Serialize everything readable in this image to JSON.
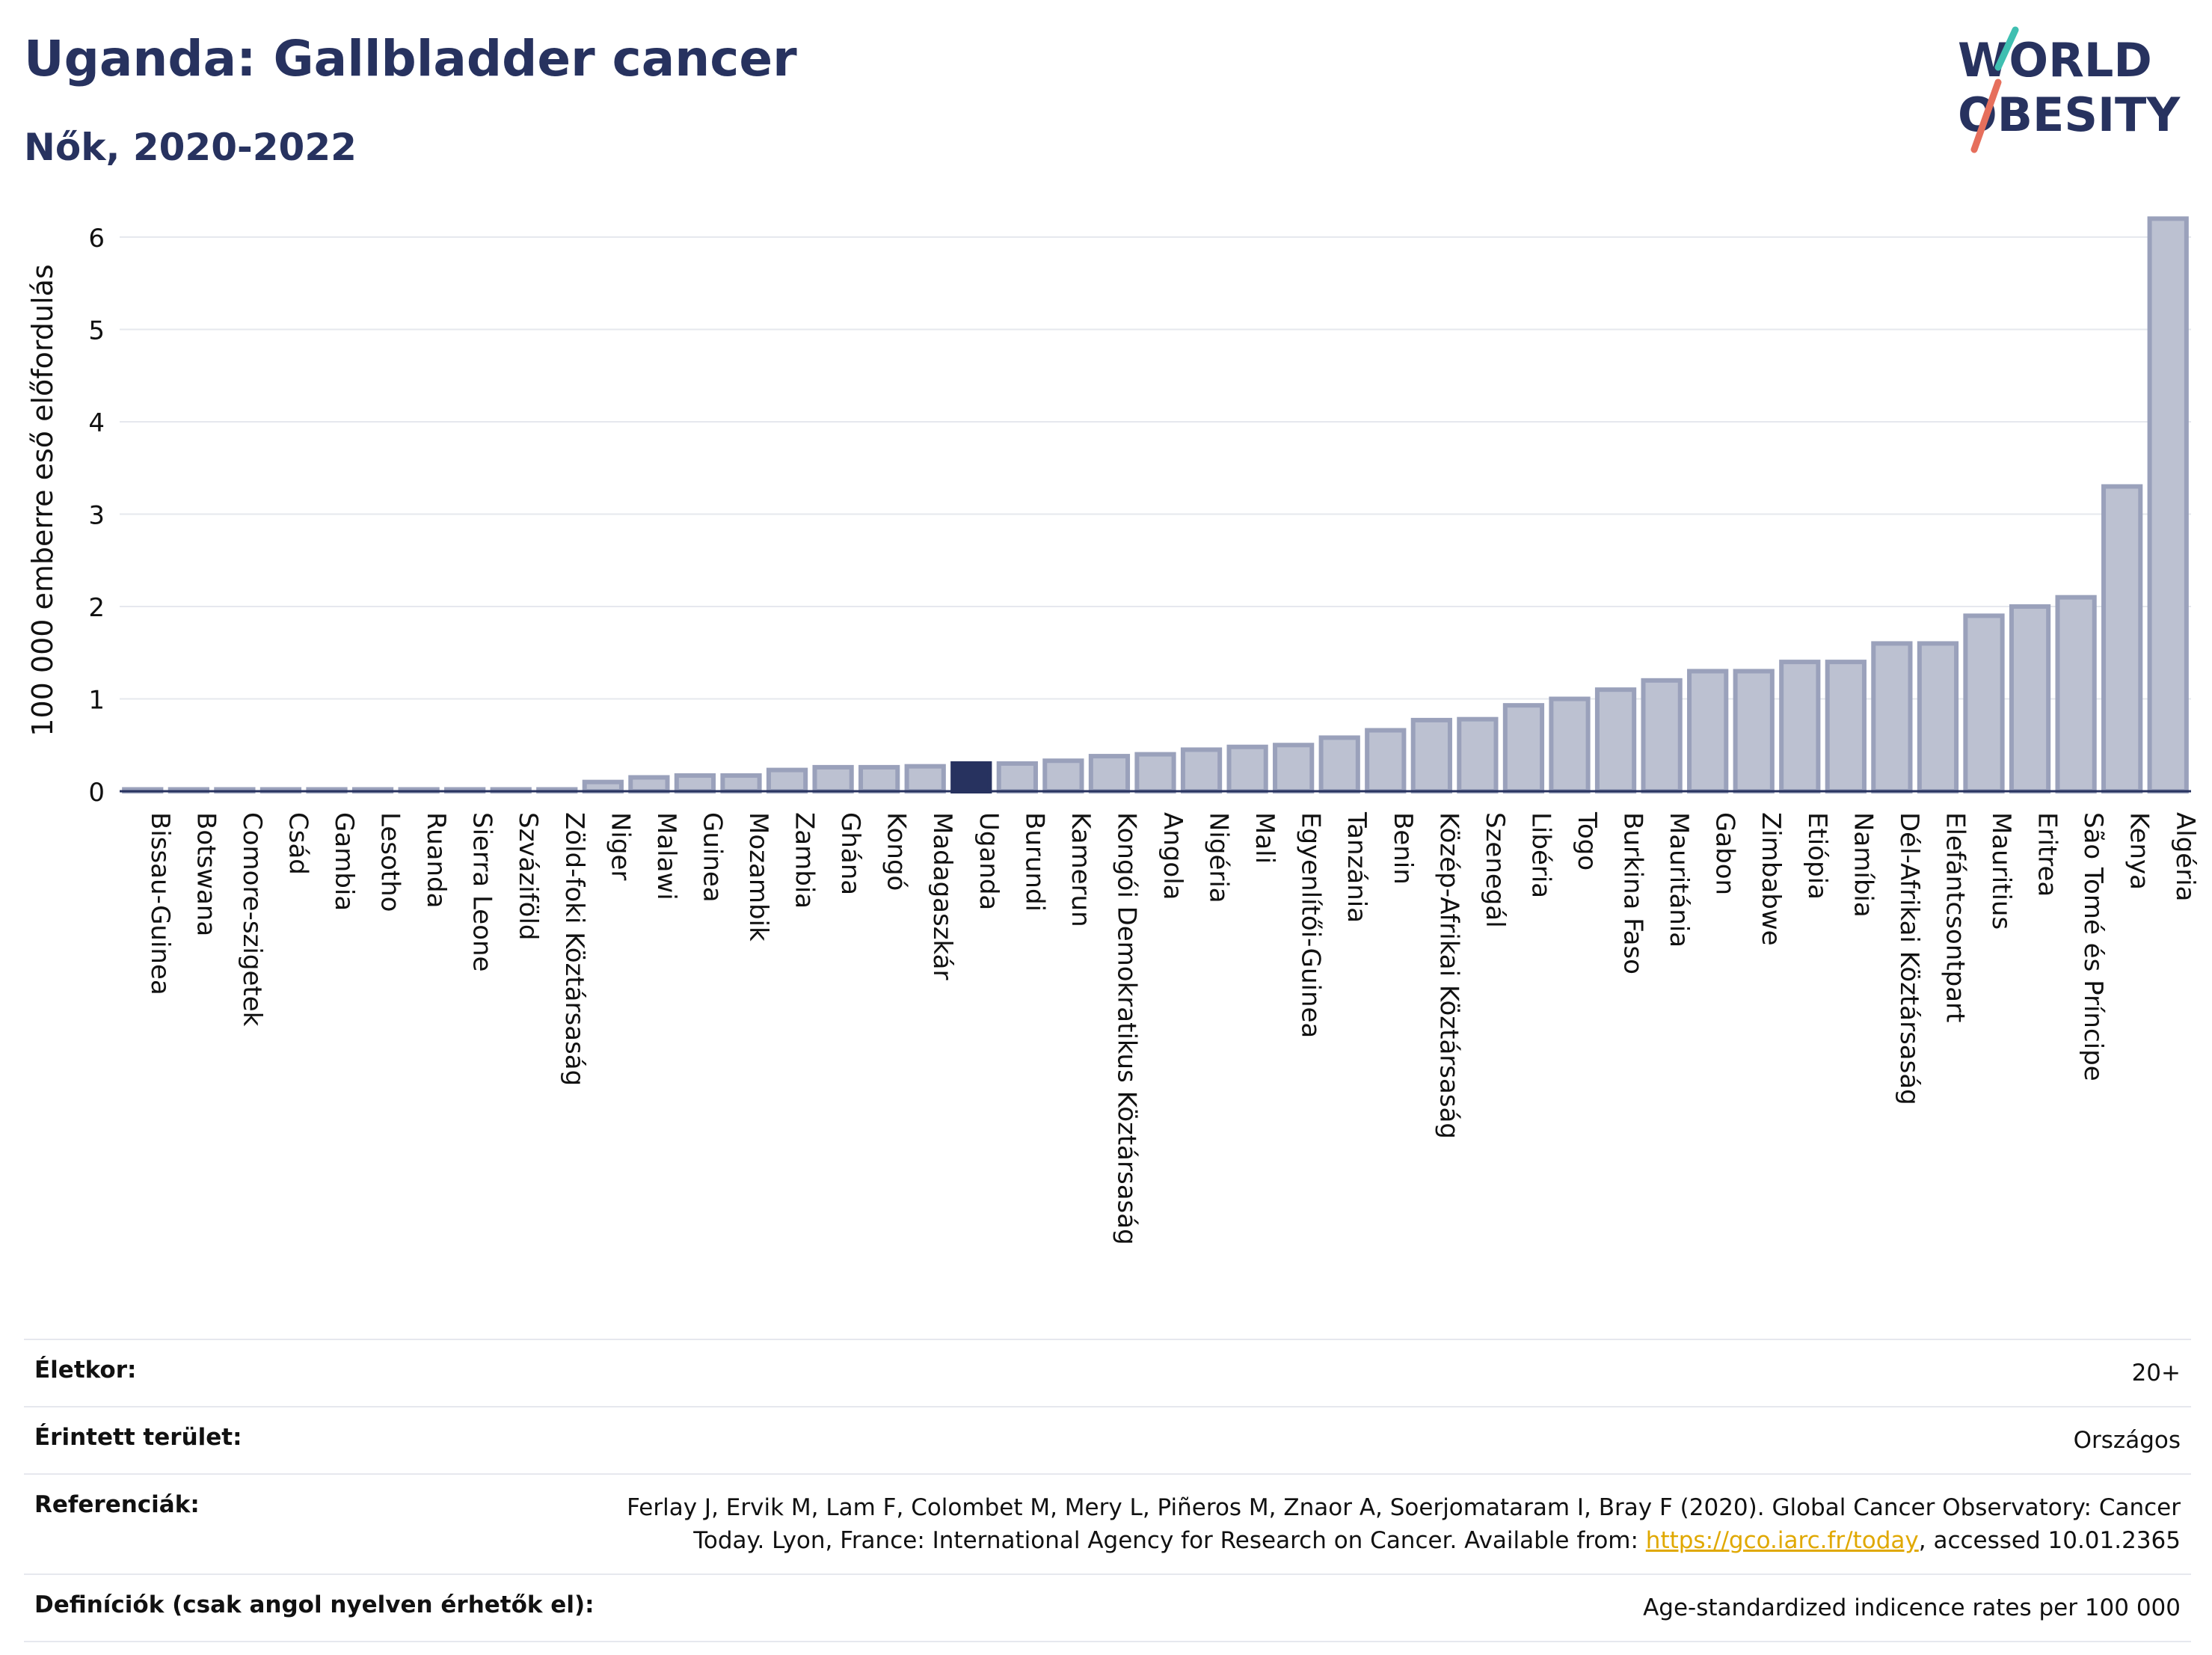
{
  "header": {
    "title": "Uganda: Gallbladder cancer",
    "subtitle": "Nők, 2020-2022"
  },
  "logo": {
    "line1": "WORLD",
    "line2": "OBESITY"
  },
  "colors": {
    "bar": "#bcc1d1",
    "bar_border": "#9aa1bb",
    "highlight": "#27325f",
    "text": "#27325f"
  },
  "chart_data": {
    "type": "bar",
    "ylabel": "100 000 emberre eső előfordulás",
    "ylim": [
      0,
      6.3
    ],
    "yticks": [
      0,
      1,
      2,
      3,
      4,
      5,
      6
    ],
    "highlight": "Uganda",
    "categories": [
      "Bissau-Guinea",
      "Botswana",
      "Comore-szigetek",
      "Csád",
      "Gambia",
      "Lesotho",
      "Ruanda",
      "Sierra Leone",
      "Szváziföld",
      "Zöld-foki Köztársaság",
      "Niger",
      "Malawi",
      "Guinea",
      "Mozambik",
      "Zambia",
      "Ghána",
      "Kongó",
      "Madagaszkár",
      "Uganda",
      "Burundi",
      "Kamerun",
      "Kongói Demokratikus Köztársaság",
      "Angola",
      "Nigéria",
      "Mali",
      "Egyenlítői-Guinea",
      "Tanzánia",
      "Benin",
      "Közép-Afrikai Köztársaság",
      "Szenegál",
      "Libéria",
      "Togo",
      "Burkina Faso",
      "Mauritánia",
      "Gabon",
      "Zimbabwe",
      "Etiópia",
      "Namíbia",
      "Dél-Afrikai Köztársaság",
      "Elefántcsontpart",
      "Mauritius",
      "Eritrea",
      "São Tomé és Príncipe",
      "Kenya",
      "Algéria"
    ],
    "values": [
      0.02,
      0.02,
      0.02,
      0.02,
      0.02,
      0.02,
      0.02,
      0.02,
      0.02,
      0.02,
      0.1,
      0.15,
      0.17,
      0.17,
      0.23,
      0.26,
      0.26,
      0.27,
      0.3,
      0.3,
      0.33,
      0.38,
      0.4,
      0.45,
      0.48,
      0.5,
      0.58,
      0.66,
      0.77,
      0.78,
      0.93,
      1.0,
      1.1,
      1.2,
      1.3,
      1.3,
      1.4,
      1.4,
      1.6,
      1.6,
      1.9,
      2.0,
      2.1,
      3.3,
      6.2
    ]
  },
  "info": {
    "age_label": "Életkor:",
    "age_value": "20+",
    "area_label": "Érintett terület:",
    "area_value": "Országos",
    "ref_label": "Referenciák:",
    "ref_text_1": "Ferlay J, Ervik M, Lam F, Colombet M, Mery L, Piñeros M, Znaor A, Soerjomataram I, Bray F (2020). Global Cancer Observatory: Cancer Today. Lyon, France: International Agency for Research on Cancer. Available from: ",
    "ref_link": "https://gco.iarc.fr/today",
    "ref_text_2": ", accessed 10.01.2365",
    "def_label": "Definíciók (csak angol nyelven érhetők el):",
    "def_value": "Age-standardized indicence rates per 100 000"
  }
}
